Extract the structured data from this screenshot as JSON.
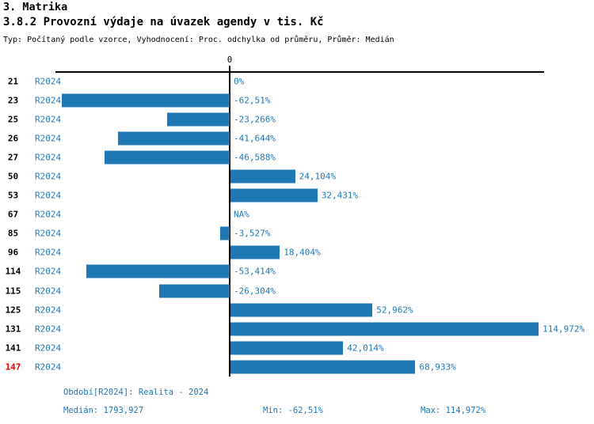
{
  "header": {
    "title": "3. Matrika",
    "subtitle": "3.8.2 Provozní výdaje na úvazek agendy v tis. Kč",
    "meta": "Typ: Počítaný podle vzorce, Vyhodnocení: Proc. odchylka od průměru, Průměr: Medián"
  },
  "chart_data": {
    "type": "bar",
    "orientation": "horizontal",
    "title": "3.8.2 Provozní výdaje na úvazek agendy v tis. Kč",
    "unit": "%",
    "axis": {
      "zero_tick_label": "0",
      "xlim": [
        -65.3,
        117.3
      ],
      "grid": false
    },
    "colors": {
      "bar": "#1f77b4",
      "text": "#1f77b4",
      "highlight": "#ee0000"
    },
    "rows": [
      {
        "id": "21",
        "period": "R2024",
        "value": 0,
        "label": "0%",
        "highlight": false
      },
      {
        "id": "23",
        "period": "R2024",
        "value": -62.51,
        "label": "-62,51%",
        "highlight": false
      },
      {
        "id": "25",
        "period": "R2024",
        "value": -23.266,
        "label": "-23,266%",
        "highlight": false
      },
      {
        "id": "26",
        "period": "R2024",
        "value": -41.644,
        "label": "-41,644%",
        "highlight": false
      },
      {
        "id": "27",
        "period": "R2024",
        "value": -46.588,
        "label": "-46,588%",
        "highlight": false
      },
      {
        "id": "50",
        "period": "R2024",
        "value": 24.104,
        "label": "24,104%",
        "highlight": false
      },
      {
        "id": "53",
        "period": "R2024",
        "value": 32.431,
        "label": "32,431%",
        "highlight": false
      },
      {
        "id": "67",
        "period": "R2024",
        "value": null,
        "label": "NA%",
        "highlight": false
      },
      {
        "id": "85",
        "period": "R2024",
        "value": -3.527,
        "label": "-3,527%",
        "highlight": false
      },
      {
        "id": "96",
        "period": "R2024",
        "value": 18.404,
        "label": "18,404%",
        "highlight": false
      },
      {
        "id": "114",
        "period": "R2024",
        "value": -53.414,
        "label": "-53,414%",
        "highlight": false
      },
      {
        "id": "115",
        "period": "R2024",
        "value": -26.304,
        "label": "-26,304%",
        "highlight": false
      },
      {
        "id": "125",
        "period": "R2024",
        "value": 52.962,
        "label": "52,962%",
        "highlight": false
      },
      {
        "id": "131",
        "period": "R2024",
        "value": 114.972,
        "label": "114,972%",
        "highlight": false
      },
      {
        "id": "141",
        "period": "R2024",
        "value": 42.014,
        "label": "42,014%",
        "highlight": false
      },
      {
        "id": "147",
        "period": "R2024",
        "value": 68.933,
        "label": "68,933%",
        "highlight": true
      }
    ]
  },
  "footer": {
    "period_line": "Období[R2024]: Realita - 2024",
    "median": "Medián: 1793,927",
    "min": "Min: -62,51%",
    "max": "Max: 114,972%"
  }
}
